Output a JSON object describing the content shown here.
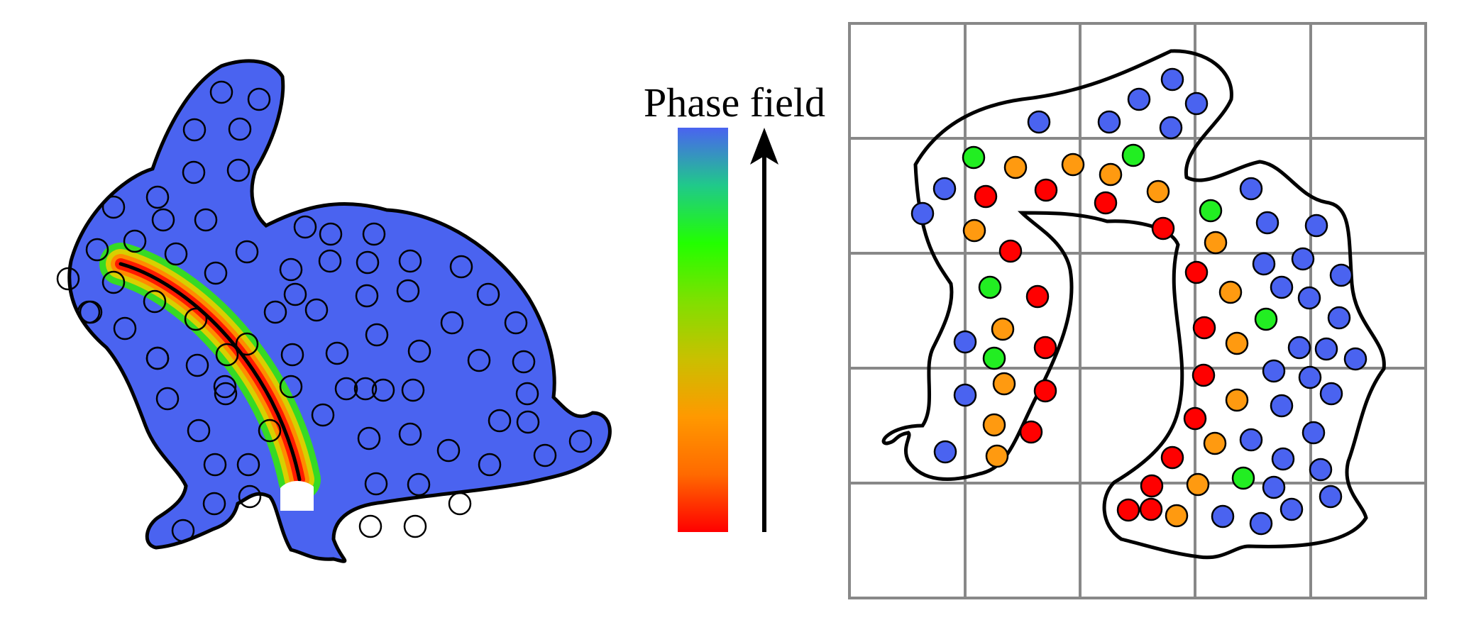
{
  "colorbar": {
    "title": "Phase field",
    "gradient_stops": [
      "#ff0000",
      "#ff6a00",
      "#ff9900",
      "#c9c000",
      "#7fe000",
      "#22ff00",
      "#20c98a",
      "#4a63f0"
    ]
  },
  "colors": {
    "bunny_fill": "#4a63f0",
    "crack_core": "#000000",
    "crack_inner": "#ff1a00",
    "crack_mid": "#ff8c00",
    "crack_outer": "#33ee00",
    "particle_blue": "#4a63f0",
    "particle_red": "#ff0000",
    "particle_orange": "#ff9a10",
    "particle_green": "#22ee22",
    "grid_line": "#888888",
    "outline": "#000000"
  }
}
